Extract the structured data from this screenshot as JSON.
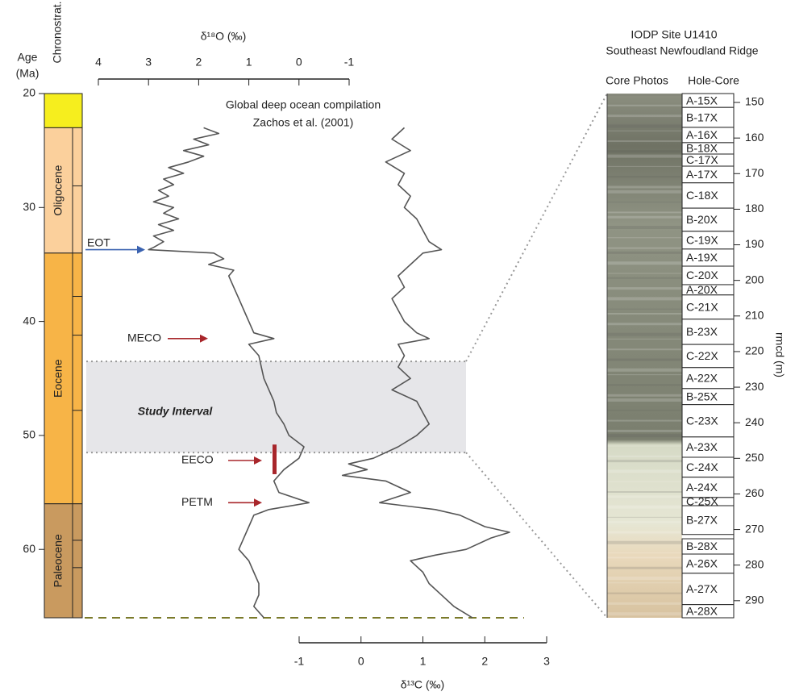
{
  "chart_data": [
    {
      "type": "line",
      "age_label": [
        "Age",
        "(Ma)"
      ],
      "chronostrat_label": "Chronostrat.",
      "compilation_label": [
        "Global  deep ocean compilation",
        "Zachos et al. (2001)"
      ],
      "ylim": [
        20,
        66
      ],
      "yticks": [
        20,
        30,
        40,
        50,
        60
      ],
      "x1label": "δ¹⁸O (‰)",
      "x1lim": [
        4,
        -1
      ],
      "x1ticks": [
        4,
        3,
        2,
        1,
        0,
        -1
      ],
      "x2label": "δ¹³C (‰)",
      "x2lim": [
        -1,
        3
      ],
      "x2ticks": [
        -1,
        0,
        1,
        2,
        3
      ],
      "epochs": [
        {
          "name": null,
          "top": 20,
          "bottom": 23,
          "color": "#f6ee1e"
        },
        {
          "name": "Oligocene",
          "top": 23,
          "bottom": 34,
          "color": "#fbd09c"
        },
        {
          "name": "Eocene",
          "top": 34,
          "bottom": 56,
          "color": "#f7b447"
        },
        {
          "name": "Paleocene",
          "top": 56,
          "bottom": 66,
          "color": "#c99a5f"
        }
      ],
      "stage_boundaries": [
        28.1,
        37.8,
        41.2,
        47.8,
        59.2,
        61.6
      ],
      "study_interval": {
        "label": "Study Interval",
        "range": [
          43.5,
          51.5
        ]
      },
      "annotations": [
        {
          "label": "EOT",
          "age": 33.7,
          "color": "#3a62b0"
        },
        {
          "label": "MECO",
          "age": 41.5,
          "color": "#a8262b"
        },
        {
          "label": "EECO",
          "age": 52.2,
          "color": "#a8262b",
          "range": [
            50.8,
            53.4
          ]
        },
        {
          "label": "PETM",
          "age": 55.9,
          "color": "#a8262b"
        }
      ],
      "series": [
        {
          "axis": "x1",
          "color": "#555555",
          "ages": [
            23,
            23.5,
            24,
            24.5,
            25,
            25.5,
            26,
            26.5,
            27,
            27.5,
            28,
            28.5,
            29,
            29.5,
            30,
            30.5,
            31,
            31.5,
            32,
            32.5,
            33,
            33.5,
            33.7,
            34,
            34.5,
            35,
            35.5,
            36,
            37,
            38,
            39,
            40,
            41,
            41.5,
            42,
            43,
            44,
            45,
            46,
            47,
            48,
            49,
            50,
            51,
            52,
            53,
            54,
            55,
            55.9,
            56.5,
            57,
            58,
            59,
            60,
            61,
            62,
            63,
            64,
            65,
            66
          ],
          "values": [
            1.9,
            1.6,
            2.1,
            1.8,
            2.3,
            1.9,
            2.2,
            2.6,
            2.3,
            2.7,
            2.5,
            2.8,
            2.6,
            2.9,
            2.5,
            2.7,
            2.4,
            2.8,
            2.5,
            2.9,
            2.7,
            2.9,
            3.0,
            1.7,
            1.5,
            1.8,
            1.3,
            1.4,
            1.3,
            1.2,
            1.1,
            1.0,
            0.9,
            0.5,
            1.0,
            0.8,
            0.75,
            0.7,
            0.6,
            0.5,
            0.45,
            0.3,
            0.2,
            -0.1,
            0.0,
            0.3,
            0.5,
            0.4,
            -0.2,
            0.6,
            0.9,
            1.0,
            1.1,
            1.2,
            1.0,
            0.9,
            0.8,
            0.8,
            0.9,
            0.7
          ]
        },
        {
          "axis": "x2",
          "color": "#555555",
          "ages": [
            23,
            24,
            25,
            26,
            27,
            28,
            29,
            30,
            31,
            32,
            33,
            33.7,
            34,
            35,
            36,
            37,
            38,
            39,
            40,
            41,
            41.5,
            42,
            43,
            44,
            45,
            46,
            47,
            48,
            49,
            50,
            51,
            52,
            52.5,
            53,
            53.5,
            54,
            55,
            55.9,
            56.5,
            57,
            58,
            58.5,
            59,
            60,
            60.5,
            61,
            62,
            63,
            64,
            65,
            66
          ],
          "values": [
            0.7,
            0.5,
            0.8,
            0.4,
            0.7,
            0.6,
            0.8,
            0.7,
            0.9,
            1.0,
            1.1,
            1.3,
            1.0,
            0.8,
            0.6,
            0.7,
            0.5,
            0.6,
            0.7,
            0.9,
            1.1,
            0.6,
            0.7,
            0.6,
            0.8,
            0.5,
            0.9,
            1.0,
            1.1,
            0.9,
            0.6,
            0.2,
            -0.2,
            0.1,
            -0.3,
            0.4,
            0.8,
            0.3,
            1.2,
            1.6,
            2.0,
            2.4,
            2.1,
            1.7,
            1.2,
            0.8,
            1.0,
            1.1,
            1.3,
            1.5,
            1.8
          ]
        }
      ]
    },
    {
      "type": "core",
      "title": [
        "IODP Site U1410",
        "Southeast Newfoudland Ridge"
      ],
      "photo_label": "Core Photos",
      "core_label": "Hole-Core",
      "ylabel": "rmcd (m)",
      "ylim": [
        147.5,
        294.8
      ],
      "yticks": [
        150,
        160,
        170,
        180,
        190,
        200,
        210,
        220,
        230,
        240,
        250,
        260,
        270,
        280,
        290
      ],
      "cores": [
        {
          "label": "A-15X",
          "top": 147.5,
          "bottom": 151.4
        },
        {
          "label": "B-17X",
          "top": 151.4,
          "bottom": 157.0
        },
        {
          "label": "A-16X",
          "top": 157.0,
          "bottom": 161.3
        },
        {
          "label": "B-18X",
          "top": 161.3,
          "bottom": 164.5
        },
        {
          "label": "C-17X",
          "top": 164.5,
          "bottom": 167.9
        },
        {
          "label": "A-17X",
          "top": 167.9,
          "bottom": 172.6
        },
        {
          "label": "C-18X",
          "top": 172.6,
          "bottom": 179.7
        },
        {
          "label": "B-20X",
          "top": 179.7,
          "bottom": 186.2
        },
        {
          "label": "C-19X",
          "top": 186.2,
          "bottom": 191.2
        },
        {
          "label": "A-19X",
          "top": 191.2,
          "bottom": 196.0
        },
        {
          "label": "C-20X",
          "top": 196.0,
          "bottom": 201.2
        },
        {
          "label": "A-20X",
          "top": 201.2,
          "bottom": 204.1
        },
        {
          "label": "C-21X",
          "top": 204.1,
          "bottom": 210.9
        },
        {
          "label": "B-23X",
          "top": 210.9,
          "bottom": 218.0
        },
        {
          "label": "C-22X",
          "top": 218.0,
          "bottom": 224.5
        },
        {
          "label": "A-22X",
          "top": 224.5,
          "bottom": 230.4
        },
        {
          "label": "B-25X",
          "top": 230.4,
          "bottom": 234.9
        },
        {
          "label": "C-23X",
          "top": 234.9,
          "bottom": 244.0
        },
        {
          "label": "A-23X",
          "top": 244.0,
          "bottom": 249.7
        },
        {
          "label": "C-24X",
          "top": 249.7,
          "bottom": 255.3
        },
        {
          "label": "A-24X",
          "top": 255.3,
          "bottom": 261.0
        },
        {
          "label": "C-25X",
          "top": 261.0,
          "bottom": 263.3
        },
        {
          "label": "B-27X",
          "top": 263.3,
          "bottom": 271.4
        },
        {
          "label": "B-28X",
          "top": 272.6,
          "bottom": 276.9
        },
        {
          "label": "A-26X",
          "top": 276.9,
          "bottom": 282.3
        },
        {
          "label": "A-27X",
          "top": 282.3,
          "bottom": 291.1
        },
        {
          "label": "A-28X",
          "top": 291.1,
          "bottom": 294.8
        }
      ]
    }
  ]
}
